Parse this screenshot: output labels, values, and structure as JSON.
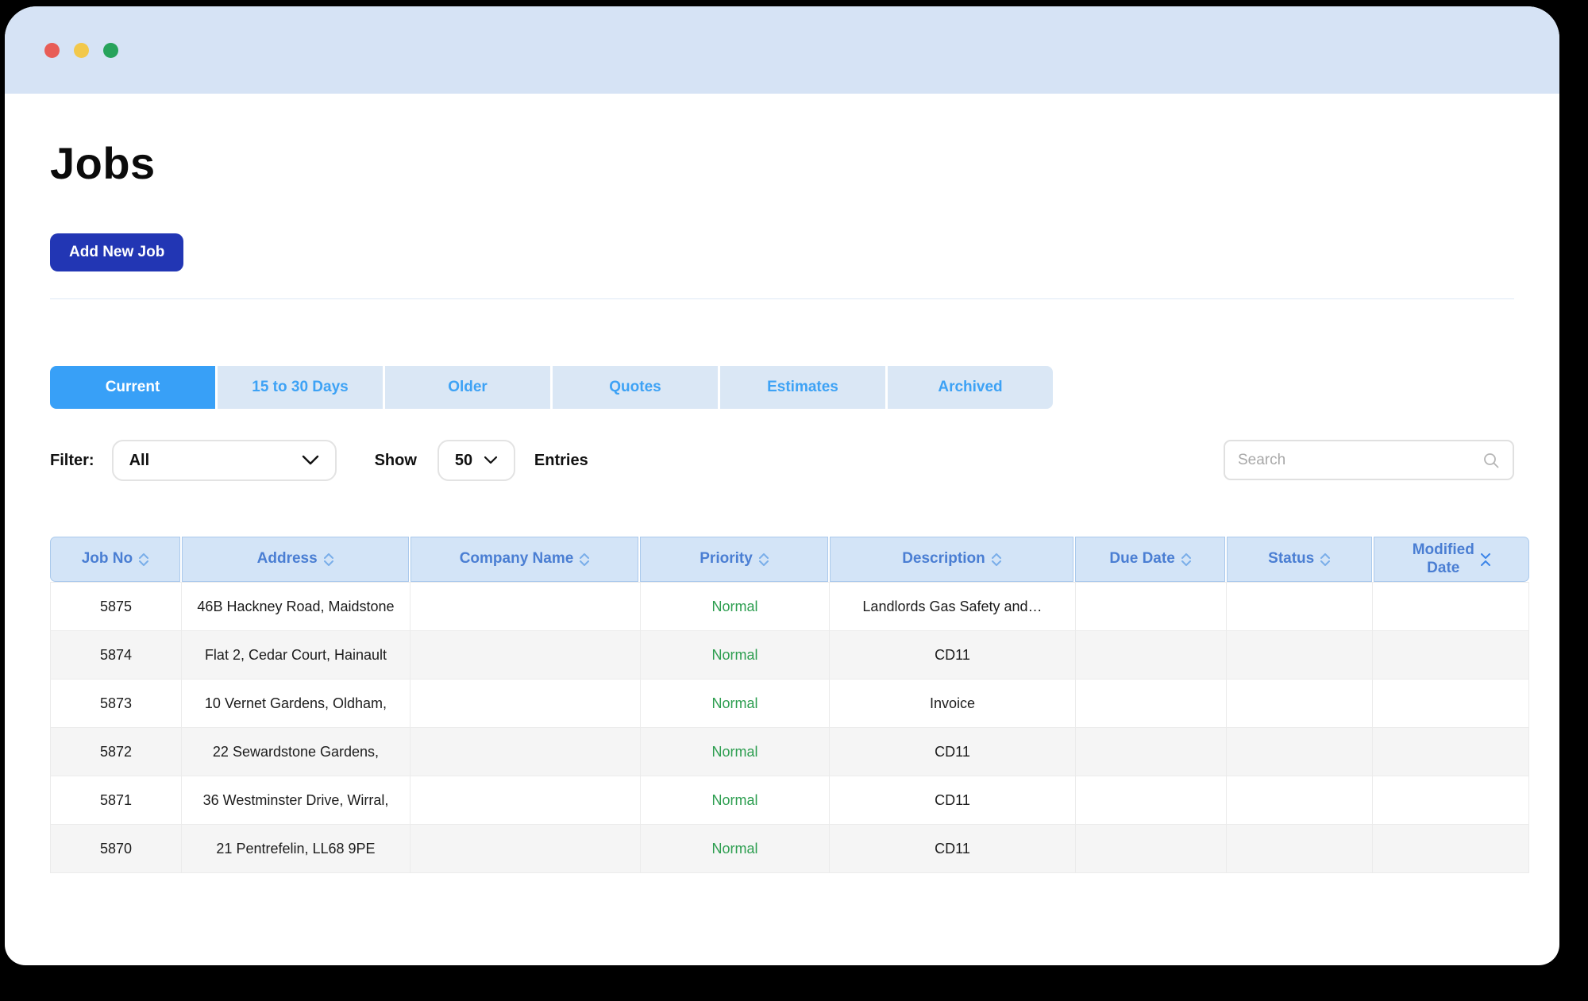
{
  "window": {
    "traffic_lights": [
      {
        "name": "close",
        "color": "#e85d57"
      },
      {
        "name": "minimize",
        "color": "#f2c84b"
      },
      {
        "name": "zoom",
        "color": "#27a35b"
      }
    ],
    "titlebar_color": "#d6e3f5"
  },
  "page": {
    "title": "Jobs"
  },
  "toolbar": {
    "add_button_label": "Add New Job"
  },
  "tabs": [
    {
      "label": "Current",
      "active": true
    },
    {
      "label": "15 to 30 Days",
      "active": false
    },
    {
      "label": "Older",
      "active": false
    },
    {
      "label": "Quotes",
      "active": false
    },
    {
      "label": "Estimates",
      "active": false
    },
    {
      "label": "Archived",
      "active": false
    }
  ],
  "filters": {
    "filter_label": "Filter:",
    "filter_value": "All",
    "show_label": "Show",
    "show_value": "50",
    "entries_label": "Entries",
    "search_placeholder": "Search"
  },
  "table": {
    "columns": [
      {
        "label": "Job No",
        "sort": "default"
      },
      {
        "label": "Address",
        "sort": "default"
      },
      {
        "label": "Company Name",
        "sort": "default"
      },
      {
        "label": "Priority",
        "sort": "default"
      },
      {
        "label": "Description",
        "sort": "default"
      },
      {
        "label": "Due Date",
        "sort": "default"
      },
      {
        "label": "Status",
        "sort": "default"
      },
      {
        "label": "Modified Date",
        "sort": "active-desc"
      }
    ],
    "rows": [
      {
        "job_no": "5875",
        "address": "46B Hackney Road, Maidstone",
        "company": "",
        "priority": "Normal",
        "description": "Landlords Gas Safety and…",
        "due_date": "",
        "status": "",
        "modified_date": ""
      },
      {
        "job_no": "5874",
        "address": "Flat 2, Cedar Court, Hainault",
        "company": "",
        "priority": "Normal",
        "description": "CD11",
        "due_date": "",
        "status": "",
        "modified_date": ""
      },
      {
        "job_no": "5873",
        "address": "10 Vernet Gardens, Oldham,",
        "company": "",
        "priority": "Normal",
        "description": "Invoice",
        "due_date": "",
        "status": "",
        "modified_date": ""
      },
      {
        "job_no": "5872",
        "address": "22 Sewardstone Gardens,",
        "company": "",
        "priority": "Normal",
        "description": "CD11",
        "due_date": "",
        "status": "",
        "modified_date": ""
      },
      {
        "job_no": "5871",
        "address": "36 Westminster Drive, Wirral,",
        "company": "",
        "priority": "Normal",
        "description": "CD11",
        "due_date": "",
        "status": "",
        "modified_date": ""
      },
      {
        "job_no": "5870",
        "address": "21 Pentrefelin, LL68 9PE",
        "company": "",
        "priority": "Normal",
        "description": "CD11",
        "due_date": "",
        "status": "",
        "modified_date": ""
      }
    ]
  },
  "colors": {
    "accent_tab_active": "#38a0f7",
    "tab_inactive_bg": "#dae7f5",
    "tab_inactive_text": "#3da2f5",
    "header_bg": "#d3e4f7",
    "header_text": "#4a7ed3",
    "button_bg": "#2236b4",
    "priority_normal": "#2d9e50",
    "row_alt_bg": "#f5f5f5"
  }
}
